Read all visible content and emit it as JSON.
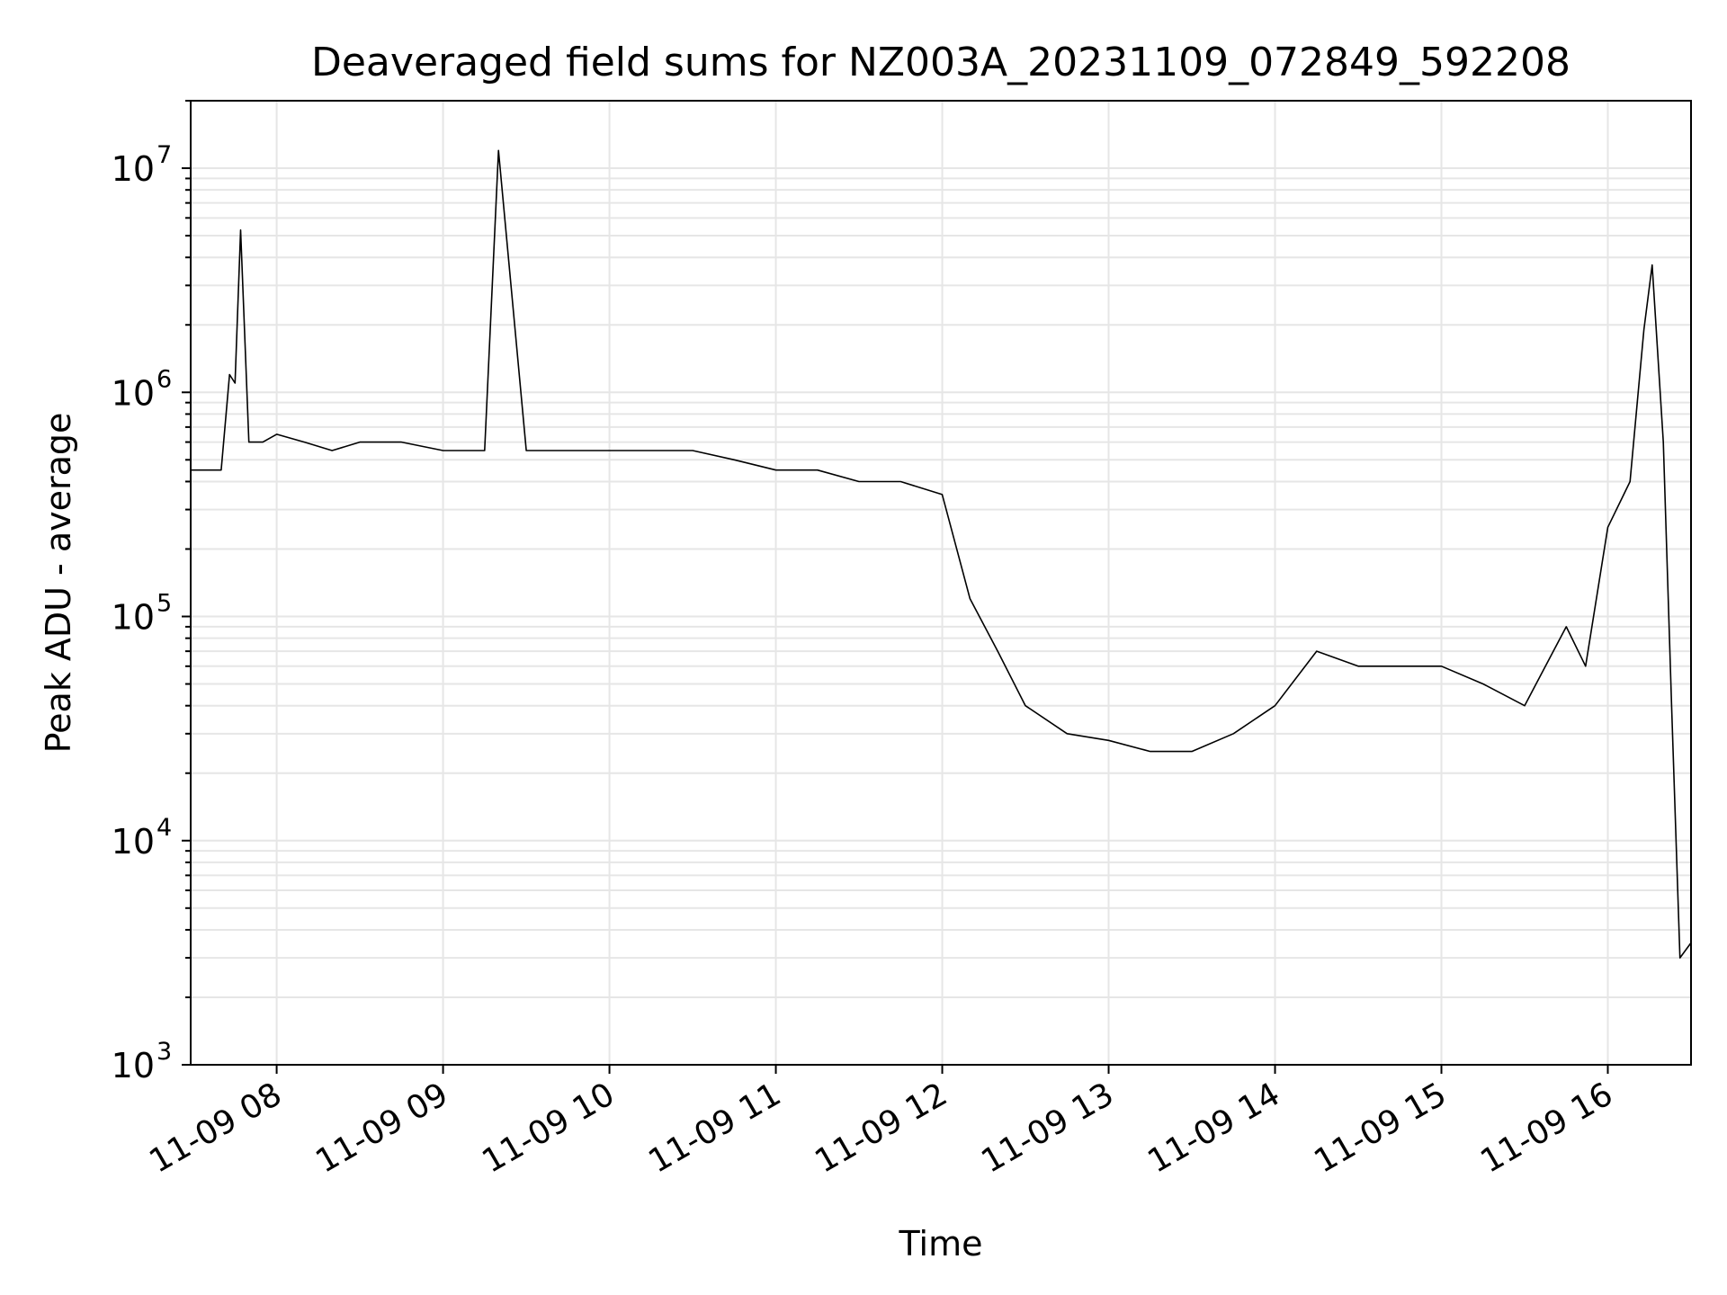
{
  "chart_data": {
    "type": "line",
    "title": "Deaveraged field sums for NZ003A_20231109_072849_592208",
    "xlabel": "Time",
    "ylabel": "Peak ADU - average",
    "yscale": "log",
    "ylim": [
      1000,
      20000000
    ],
    "xlim": [
      "2023-11-09 07:29",
      "2023-11-09 16:30"
    ],
    "x_ticks": [
      "11-09 08",
      "11-09 09",
      "11-09 10",
      "11-09 11",
      "11-09 12",
      "11-09 13",
      "11-09 14",
      "11-09 15",
      "11-09 16"
    ],
    "y_ticks": [
      {
        "base": "10",
        "exp": "3"
      },
      {
        "base": "10",
        "exp": "4"
      },
      {
        "base": "10",
        "exp": "5"
      },
      {
        "base": "10",
        "exp": "6"
      },
      {
        "base": "10",
        "exp": "7"
      }
    ],
    "grid": true,
    "line_color": "#000000",
    "series": [
      {
        "x": [
          "2023-11-09 07:29",
          "2023-11-09 07:35",
          "2023-11-09 07:40",
          "2023-11-09 07:43",
          "2023-11-09 07:45",
          "2023-11-09 07:47",
          "2023-11-09 07:50",
          "2023-11-09 07:55",
          "2023-11-09 08:00",
          "2023-11-09 08:10",
          "2023-11-09 08:20",
          "2023-11-09 08:30",
          "2023-11-09 08:45",
          "2023-11-09 09:00",
          "2023-11-09 09:15",
          "2023-11-09 09:20",
          "2023-11-09 09:30",
          "2023-11-09 09:45",
          "2023-11-09 10:00",
          "2023-11-09 10:15",
          "2023-11-09 10:30",
          "2023-11-09 10:45",
          "2023-11-09 11:00",
          "2023-11-09 11:15",
          "2023-11-09 11:30",
          "2023-11-09 11:45",
          "2023-11-09 12:00",
          "2023-11-09 12:10",
          "2023-11-09 12:20",
          "2023-11-09 12:30",
          "2023-11-09 12:45",
          "2023-11-09 13:00",
          "2023-11-09 13:15",
          "2023-11-09 13:30",
          "2023-11-09 13:45",
          "2023-11-09 14:00",
          "2023-11-09 14:15",
          "2023-11-09 14:30",
          "2023-11-09 14:45",
          "2023-11-09 15:00",
          "2023-11-09 15:15",
          "2023-11-09 15:30",
          "2023-11-09 15:45",
          "2023-11-09 15:52",
          "2023-11-09 16:00",
          "2023-11-09 16:08",
          "2023-11-09 16:13",
          "2023-11-09 16:16",
          "2023-11-09 16:20",
          "2023-11-09 16:23",
          "2023-11-09 16:26",
          "2023-11-09 16:30"
        ],
        "y": [
          450000,
          450000,
          450000,
          1200000,
          1100000,
          5300000,
          600000,
          600000,
          650000,
          600000,
          550000,
          600000,
          600000,
          550000,
          550000,
          12000000,
          550000,
          550000,
          550000,
          550000,
          550000,
          500000,
          450000,
          450000,
          400000,
          400000,
          350000,
          120000,
          70000,
          40000,
          30000,
          28000,
          25000,
          25000,
          30000,
          40000,
          70000,
          60000,
          60000,
          60000,
          50000,
          40000,
          90000,
          60000,
          250000,
          400000,
          1900000,
          3700000,
          600000,
          40000,
          3000,
          3500
        ]
      }
    ]
  }
}
